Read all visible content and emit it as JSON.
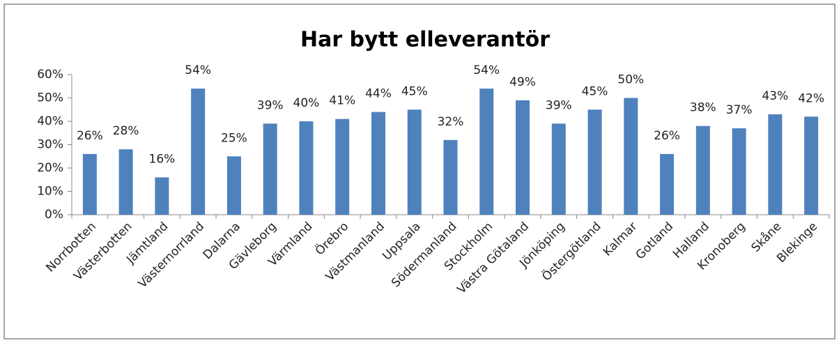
{
  "chart_data": {
    "type": "bar",
    "title": "Har bytt elleverantör",
    "categories": [
      "Norrbotten",
      "Västerbotten",
      "Jämtland",
      "Västernorrland",
      "Dalarna",
      "Gävleborg",
      "Värmland",
      "Örebro",
      "Västmanland",
      "Uppsala",
      "Södermanland",
      "Stockholm",
      "Västra Götaland",
      "Jönköping",
      "Östergötland",
      "Kalmar",
      "Gotland",
      "Halland",
      "Kronoberg",
      "Skåne",
      "Blekinge"
    ],
    "values": [
      26,
      28,
      16,
      54,
      25,
      39,
      40,
      41,
      44,
      45,
      32,
      54,
      49,
      39,
      45,
      50,
      26,
      38,
      37,
      43,
      42
    ],
    "value_labels": [
      "26%",
      "28%",
      "16%",
      "54%",
      "25%",
      "39%",
      "40%",
      "41%",
      "44%",
      "45%",
      "32%",
      "54%",
      "49%",
      "39%",
      "45%",
      "50%",
      "26%",
      "38%",
      "37%",
      "43%",
      "42%"
    ],
    "color": "#4f81bd",
    "ylim": [
      0,
      60
    ],
    "yticks": [
      {
        "value": 0,
        "label": "0%"
      },
      {
        "value": 10,
        "label": "10%"
      },
      {
        "value": 20,
        "label": "20%"
      },
      {
        "value": 30,
        "label": "30%"
      },
      {
        "value": 40,
        "label": "40%"
      },
      {
        "value": 50,
        "label": "50%"
      },
      {
        "value": 60,
        "label": "60%"
      }
    ],
    "grid": false
  }
}
